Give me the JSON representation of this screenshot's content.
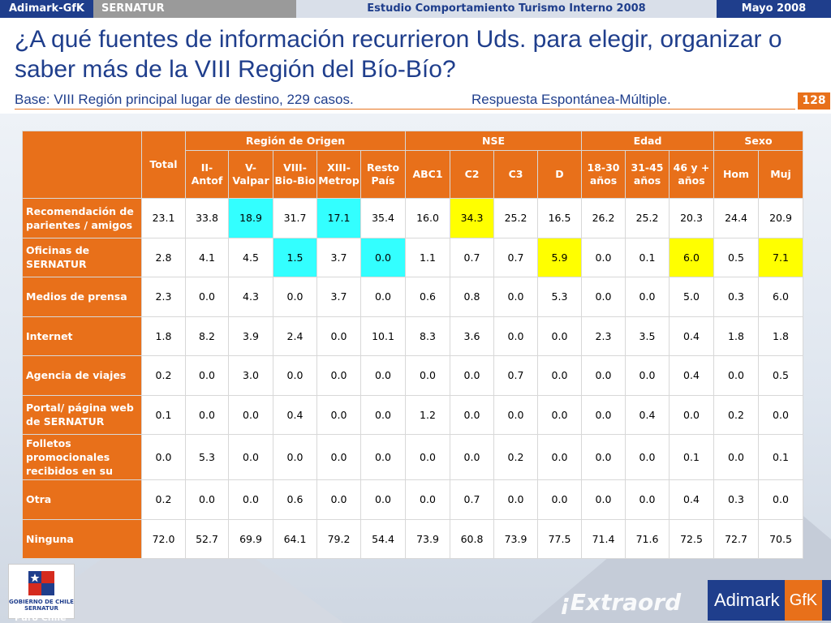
{
  "topbar": {
    "brand": "Adimark-GfK",
    "client": "SERNATUR",
    "study": "Estudio Comportamiento Turismo Interno 2008",
    "date": "Mayo 2008"
  },
  "title": "¿A qué fuentes de información recurrieron Uds. para elegir, organizar o saber más de la VIII Región del Bío-Bío?",
  "base": "Base: VIII Región principal lugar de destino, 229 casos.",
  "response_type": "Respuesta Espontánea-Múltiple.",
  "page_number": "128",
  "table": {
    "groups": {
      "total": "Total",
      "region": "Región de Origen",
      "nse": "NSE",
      "edad": "Edad",
      "sexo": "Sexo"
    },
    "columns": {
      "region": [
        "II-Antof",
        "V-Valpar",
        "VIII-Bio-Bio",
        "XIII-Metrop",
        "Resto País"
      ],
      "nse": [
        "ABC1",
        "C2",
        "C3",
        "D"
      ],
      "edad": [
        "18-30 años",
        "31-45 años",
        "46 y + años"
      ],
      "sexo": [
        "Hom",
        "Muj"
      ]
    },
    "rows": [
      {
        "label": "Recomendación de parientes / amigos",
        "values": [
          "23.1",
          "33.8",
          "18.9",
          "31.7",
          "17.1",
          "35.4",
          "16.0",
          "34.3",
          "25.2",
          "16.5",
          "26.2",
          "25.2",
          "20.3",
          "24.4",
          "20.9"
        ]
      },
      {
        "label": "Oficinas de SERNATUR",
        "values": [
          "2.8",
          "4.1",
          "4.5",
          "1.5",
          "3.7",
          "0.0",
          "1.1",
          "0.7",
          "0.7",
          "5.9",
          "0.0",
          "0.1",
          "6.0",
          "0.5",
          "7.1"
        ]
      },
      {
        "label": "Medios de prensa",
        "values": [
          "2.3",
          "0.0",
          "4.3",
          "0.0",
          "3.7",
          "0.0",
          "0.6",
          "0.8",
          "0.0",
          "5.3",
          "0.0",
          "0.0",
          "5.0",
          "0.3",
          "6.0"
        ]
      },
      {
        "label": "Internet",
        "values": [
          "1.8",
          "8.2",
          "3.9",
          "2.4",
          "0.0",
          "10.1",
          "8.3",
          "3.6",
          "0.0",
          "0.0",
          "2.3",
          "3.5",
          "0.4",
          "1.8",
          "1.8"
        ]
      },
      {
        "label": "Agencia de viajes",
        "values": [
          "0.2",
          "0.0",
          "3.0",
          "0.0",
          "0.0",
          "0.0",
          "0.0",
          "0.0",
          "0.7",
          "0.0",
          "0.0",
          "0.0",
          "0.4",
          "0.0",
          "0.5"
        ]
      },
      {
        "label": "Portal/ página web de SERNATUR",
        "values": [
          "0.1",
          "0.0",
          "0.0",
          "0.4",
          "0.0",
          "0.0",
          "1.2",
          "0.0",
          "0.0",
          "0.0",
          "0.0",
          "0.4",
          "0.0",
          "0.2",
          "0.0"
        ]
      },
      {
        "label": "Folletos promocionales recibidos en su",
        "values": [
          "0.0",
          "5.3",
          "0.0",
          "0.0",
          "0.0",
          "0.0",
          "0.0",
          "0.0",
          "0.2",
          "0.0",
          "0.0",
          "0.0",
          "0.1",
          "0.0",
          "0.1"
        ]
      },
      {
        "label": "Otra",
        "values": [
          "0.2",
          "0.0",
          "0.0",
          "0.6",
          "0.0",
          "0.0",
          "0.0",
          "0.7",
          "0.0",
          "0.0",
          "0.0",
          "0.0",
          "0.4",
          "0.3",
          "0.0"
        ]
      },
      {
        "label": "Ninguna",
        "values": [
          "72.0",
          "52.7",
          "69.9",
          "64.1",
          "79.2",
          "54.4",
          "73.9",
          "60.8",
          "73.9",
          "77.5",
          "71.4",
          "71.6",
          "72.5",
          "72.7",
          "70.5"
        ]
      }
    ],
    "highlights": {
      "cyan": [
        [
          0,
          2
        ],
        [
          0,
          4
        ],
        [
          1,
          3
        ],
        [
          1,
          5
        ]
      ],
      "yellow": [
        [
          0,
          7
        ],
        [
          1,
          9
        ],
        [
          1,
          12
        ],
        [
          1,
          14
        ]
      ]
    },
    "highlight_colors": {
      "cyan": "#33ffff",
      "yellow": "#ffff00"
    }
  },
  "footer": {
    "gov_label": "GOBIERNO DE CHILE",
    "gov_sub": "SERNATUR",
    "slogan": "Puro Chile",
    "banner": "¡Extraord",
    "logo_left": "Adimark",
    "logo_right": "GfK"
  },
  "colors": {
    "orange": "#e8701a",
    "navy": "#1f3e8c"
  }
}
